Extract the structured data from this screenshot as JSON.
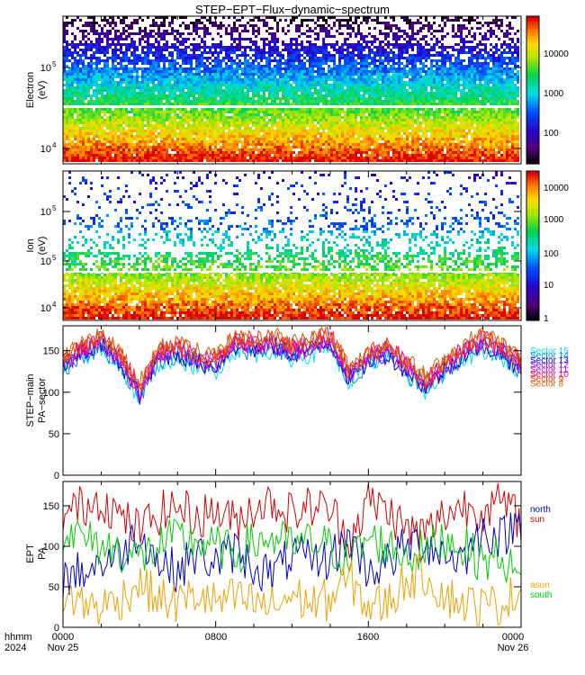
{
  "title": "STEP−EPT−Flux−dynamic−spectrum",
  "panels": {
    "electron": {
      "ylabel": "Electron",
      "yunit": "(eV)",
      "colorbar_labels": [
        "10000",
        "1000",
        "100"
      ]
    },
    "ion": {
      "ylabel": "Ion",
      "yunit": "(eV)",
      "colorbar_labels": [
        "10000",
        "1000",
        "100",
        "10",
        "1"
      ]
    },
    "step": {
      "ylabel": "STEP−main",
      "ylabel2": "PA−sector",
      "legend": [
        "Sector 15",
        "Sector 14",
        "Sector 13",
        "Sector 12",
        "Sector 11",
        "Sector 10",
        "Sector 9",
        "Sector 8"
      ]
    },
    "ept": {
      "ylabel": "EPT",
      "ylabel2": "PA",
      "legend": [
        "north",
        "sun",
        "asun",
        "south"
      ]
    }
  },
  "xaxis": {
    "row1_label": "hhmm",
    "row2_label": "2024",
    "ticks": [
      "0000",
      "0800",
      "1600",
      "0000"
    ],
    "dates": [
      "Nov 25",
      "",
      "",
      "Nov 26"
    ]
  },
  "colors": {
    "sun": "#d40000",
    "north": "#0000cc",
    "asun": "#f0a000",
    "south": "#00cc00",
    "step_sectors": [
      "#00e5e5",
      "#0088ff",
      "#0000cc",
      "#8800ff",
      "#cc00cc",
      "#ff0066",
      "#ff3300",
      "#cc6600"
    ]
  },
  "chart_data": [
    {
      "type": "heatmap",
      "name_hint": "electron",
      "x_range_hours": [
        0,
        24
      ],
      "yscale": "log",
      "y_ticks": [
        "10^4",
        "10^5"
      ],
      "colorbar": {
        "scale": "log",
        "range": [
          10,
          100000
        ],
        "labels": [
          "10000",
          "1000",
          "100"
        ]
      }
    },
    {
      "type": "heatmap",
      "name_hint": "ion",
      "x_range_hours": [
        0,
        24
      ],
      "yscale": "log",
      "y_ticks": [
        "10^4",
        "10^5",
        "10^6"
      ],
      "colorbar": {
        "scale": "log",
        "range": [
          1,
          30000
        ],
        "labels": [
          "10000",
          "1000",
          "100",
          "10",
          "1"
        ]
      }
    },
    {
      "type": "line",
      "x_range_hours": [
        0,
        24
      ],
      "ylim": [
        0,
        180
      ],
      "y_ticks": [
        0,
        50,
        100,
        150
      ],
      "series_names": [
        "Sector 15",
        "Sector 14",
        "Sector 13",
        "Sector 12",
        "Sector 11",
        "Sector 10",
        "Sector 9",
        "Sector 8"
      ],
      "x": [
        0,
        1,
        2,
        3,
        4,
        5,
        6,
        7,
        8,
        9,
        10,
        11,
        12,
        13,
        14,
        15,
        16,
        17,
        18,
        19,
        20,
        21,
        22,
        23,
        24
      ],
      "mean_values": [
        135,
        150,
        160,
        140,
        100,
        145,
        150,
        140,
        135,
        160,
        155,
        160,
        150,
        155,
        165,
        120,
        140,
        150,
        130,
        110,
        130,
        150,
        160,
        150,
        130
      ]
    },
    {
      "type": "line",
      "x_range_hours": [
        0,
        24
      ],
      "ylim": [
        0,
        180
      ],
      "y_ticks": [
        0,
        50,
        100,
        150
      ],
      "x": [
        0,
        1,
        2,
        3,
        4,
        5,
        6,
        7,
        8,
        9,
        10,
        11,
        12,
        13,
        14,
        15,
        16,
        17,
        18,
        19,
        20,
        21,
        22,
        23,
        24
      ],
      "series": [
        {
          "name": "sun",
          "values": [
            140,
            150,
            160,
            135,
            120,
            140,
            150,
            135,
            145,
            130,
            150,
            155,
            140,
            150,
            145,
            110,
            155,
            145,
            120,
            115,
            140,
            150,
            145,
            155,
            130
          ]
        },
        {
          "name": "north",
          "values": [
            60,
            70,
            80,
            90,
            120,
            80,
            70,
            90,
            80,
            95,
            75,
            65,
            90,
            80,
            85,
            110,
            70,
            80,
            100,
            105,
            90,
            85,
            120,
            110,
            135
          ]
        },
        {
          "name": "south",
          "values": [
            120,
            110,
            100,
            95,
            85,
            100,
            110,
            105,
            100,
            90,
            105,
            110,
            100,
            105,
            100,
            80,
            110,
            100,
            90,
            95,
            110,
            100,
            80,
            90,
            50
          ]
        },
        {
          "name": "asun",
          "values": [
            40,
            30,
            25,
            35,
            55,
            35,
            30,
            40,
            30,
            35,
            30,
            25,
            40,
            30,
            35,
            60,
            25,
            30,
            60,
            65,
            40,
            30,
            25,
            30,
            45
          ]
        }
      ]
    }
  ]
}
